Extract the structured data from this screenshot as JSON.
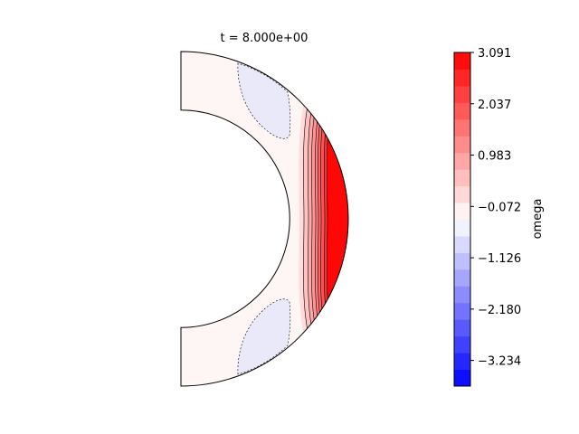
{
  "chart_data": {
    "type": "heatmap",
    "title": "t = 8.000e+00",
    "subtype": "filled contour on meridional half-annulus",
    "domain": {
      "shape": "half-annulus",
      "inner_radius_fraction": 0.65,
      "theta_range_deg": [
        -90,
        90
      ]
    },
    "colormap": "bwr",
    "colorbar": {
      "label": "omega",
      "vmin": -3.761,
      "vmax": 3.091,
      "tick_values": [
        3.091,
        2.037,
        0.983,
        -0.072,
        -1.126,
        -2.18,
        -3.234
      ],
      "tick_labels": [
        "3.091",
        "2.037",
        "0.983",
        "−0.072",
        "−1.126",
        "−2.180",
        "−3.234"
      ],
      "levels": 20
    },
    "contour_lines": {
      "positive_levels_solid": true,
      "negative_levels_dashed": true
    },
    "regions": [
      {
        "name": "equatorial positive band near outer boundary",
        "value_range": [
          0.0,
          3.091
        ]
      },
      {
        "name": "northern negative cell",
        "value_range": [
          -0.6,
          -0.07
        ]
      },
      {
        "name": "southern negative cell",
        "value_range": [
          -0.6,
          -0.07
        ]
      }
    ]
  }
}
